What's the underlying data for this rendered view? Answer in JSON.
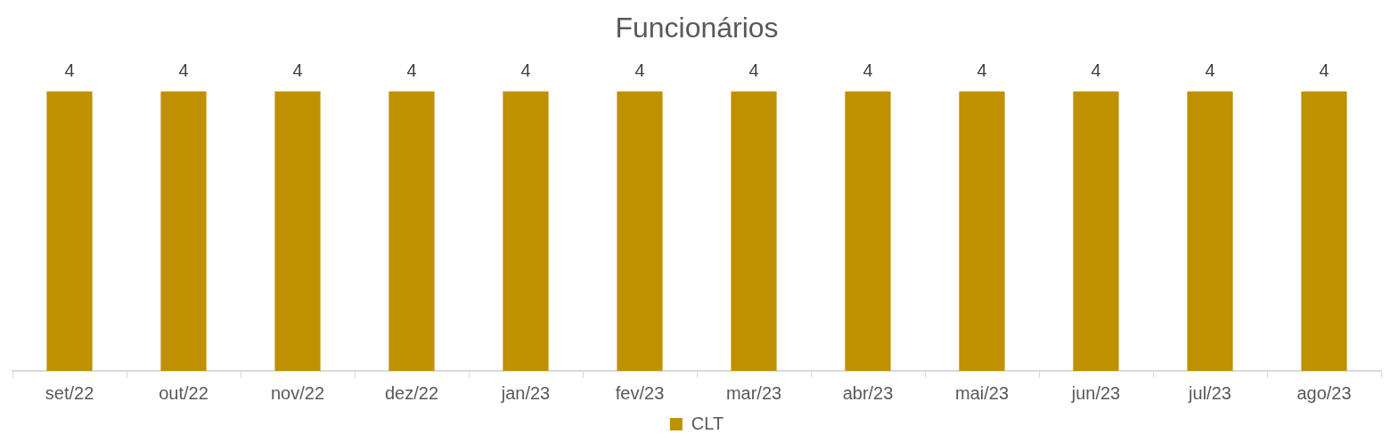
{
  "chart_data": {
    "type": "bar",
    "title": "Funcionários",
    "categories": [
      "set/22",
      "out/22",
      "nov/22",
      "dez/22",
      "jan/23",
      "fev/23",
      "mar/23",
      "abr/23",
      "mai/23",
      "jun/23",
      "jul/23",
      "ago/23"
    ],
    "series": [
      {
        "name": "CLT",
        "color": "#bf9000",
        "values": [
          4,
          4,
          4,
          4,
          4,
          4,
          4,
          4,
          4,
          4,
          4,
          4
        ]
      }
    ],
    "data_labels": true,
    "legend": "bottom",
    "grid": false
  }
}
